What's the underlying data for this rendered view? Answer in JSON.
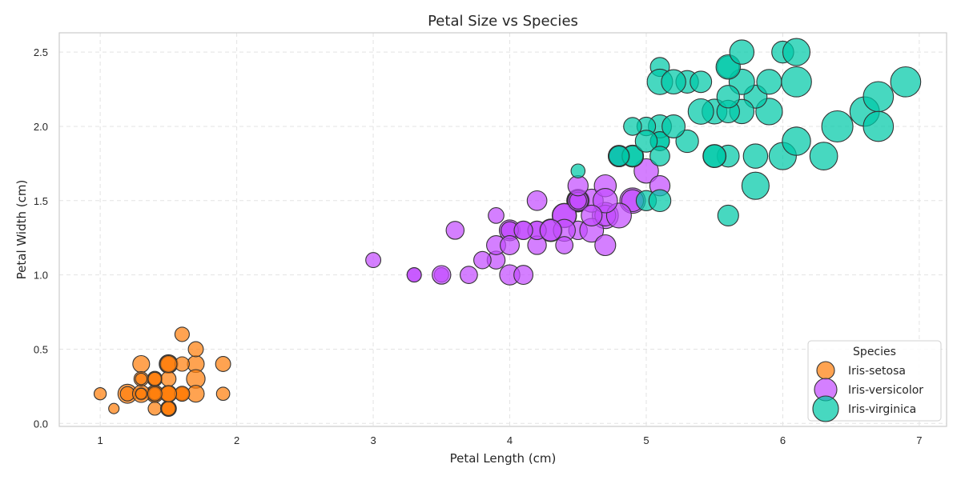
{
  "chart_data": {
    "type": "scatter",
    "title": "Petal Size vs Species",
    "xlabel": "Petal Length (cm)",
    "ylabel": "Petal Width (cm)",
    "xlim": [
      0.7,
      7.2
    ],
    "ylim": [
      -0.02,
      2.63
    ],
    "xticks": [
      1,
      2,
      3,
      4,
      5,
      6,
      7
    ],
    "xtick_labels": [
      "1",
      "2",
      "3",
      "4",
      "5",
      "6",
      "7"
    ],
    "yticks": [
      0.0,
      0.5,
      1.0,
      1.5,
      2.0,
      2.5
    ],
    "ytick_labels": [
      "0.0",
      "0.5",
      "1.0",
      "1.5",
      "2.0",
      "2.5"
    ],
    "grid": true,
    "legend": {
      "title": "Species",
      "placement": "bottom-right"
    },
    "marker_size_encodes": "sepal length",
    "series": [
      {
        "name": "Iris-setosa",
        "color": "#ff7f0e",
        "points": [
          [
            1.4,
            0.2,
            5.1
          ],
          [
            1.4,
            0.2,
            4.9
          ],
          [
            1.3,
            0.2,
            4.7
          ],
          [
            1.5,
            0.2,
            4.6
          ],
          [
            1.4,
            0.2,
            5.0
          ],
          [
            1.7,
            0.4,
            5.4
          ],
          [
            1.4,
            0.3,
            4.6
          ],
          [
            1.5,
            0.2,
            5.0
          ],
          [
            1.4,
            0.2,
            4.4
          ],
          [
            1.5,
            0.1,
            4.9
          ],
          [
            1.5,
            0.2,
            5.4
          ],
          [
            1.6,
            0.2,
            4.8
          ],
          [
            1.4,
            0.1,
            4.8
          ],
          [
            1.1,
            0.1,
            4.3
          ],
          [
            1.2,
            0.2,
            5.8
          ],
          [
            1.5,
            0.4,
            5.7
          ],
          [
            1.3,
            0.4,
            5.4
          ],
          [
            1.4,
            0.3,
            5.1
          ],
          [
            1.7,
            0.3,
            5.7
          ],
          [
            1.5,
            0.3,
            5.1
          ],
          [
            1.7,
            0.2,
            5.4
          ],
          [
            1.5,
            0.4,
            5.1
          ],
          [
            1.0,
            0.2,
            4.6
          ],
          [
            1.7,
            0.5,
            5.1
          ],
          [
            1.9,
            0.2,
            4.8
          ],
          [
            1.6,
            0.2,
            5.0
          ],
          [
            1.6,
            0.4,
            5.0
          ],
          [
            1.5,
            0.2,
            5.2
          ],
          [
            1.4,
            0.2,
            5.2
          ],
          [
            1.6,
            0.2,
            4.7
          ],
          [
            1.6,
            0.2,
            4.8
          ],
          [
            1.5,
            0.4,
            5.4
          ],
          [
            1.5,
            0.1,
            5.2
          ],
          [
            1.4,
            0.2,
            5.5
          ],
          [
            1.5,
            0.1,
            4.9
          ],
          [
            1.2,
            0.2,
            5.0
          ],
          [
            1.3,
            0.2,
            5.5
          ],
          [
            1.5,
            0.1,
            4.9
          ],
          [
            1.3,
            0.2,
            4.4
          ],
          [
            1.5,
            0.2,
            5.1
          ],
          [
            1.3,
            0.3,
            5.0
          ],
          [
            1.3,
            0.3,
            4.5
          ],
          [
            1.3,
            0.2,
            4.4
          ],
          [
            1.6,
            0.6,
            5.0
          ],
          [
            1.9,
            0.4,
            5.1
          ],
          [
            1.4,
            0.3,
            4.8
          ],
          [
            1.6,
            0.2,
            5.1
          ],
          [
            1.4,
            0.2,
            4.6
          ],
          [
            1.5,
            0.2,
            5.3
          ],
          [
            1.4,
            0.2,
            5.0
          ]
        ]
      },
      {
        "name": "Iris-versicolor",
        "color": "#c44dff",
        "points": [
          [
            4.7,
            1.4,
            7.0
          ],
          [
            4.5,
            1.5,
            6.4
          ],
          [
            4.9,
            1.5,
            6.9
          ],
          [
            4.0,
            1.3,
            5.5
          ],
          [
            4.6,
            1.5,
            6.5
          ],
          [
            4.5,
            1.3,
            5.7
          ],
          [
            4.7,
            1.6,
            6.3
          ],
          [
            3.3,
            1.0,
            4.9
          ],
          [
            4.6,
            1.3,
            6.6
          ],
          [
            3.9,
            1.4,
            5.2
          ],
          [
            3.5,
            1.0,
            5.0
          ],
          [
            4.2,
            1.5,
            5.9
          ],
          [
            4.0,
            1.0,
            6.0
          ],
          [
            4.7,
            1.4,
            6.1
          ],
          [
            3.6,
            1.3,
            5.6
          ],
          [
            4.4,
            1.4,
            6.7
          ],
          [
            4.5,
            1.5,
            5.6
          ],
          [
            4.1,
            1.0,
            5.8
          ],
          [
            4.5,
            1.5,
            6.2
          ],
          [
            3.9,
            1.1,
            5.6
          ],
          [
            4.8,
            1.8,
            5.9
          ],
          [
            4.0,
            1.3,
            6.1
          ],
          [
            4.9,
            1.5,
            6.3
          ],
          [
            4.7,
            1.2,
            6.1
          ],
          [
            4.3,
            1.3,
            6.4
          ],
          [
            4.4,
            1.4,
            6.6
          ],
          [
            4.8,
            1.4,
            6.8
          ],
          [
            5.0,
            1.7,
            6.7
          ],
          [
            4.5,
            1.5,
            6.0
          ],
          [
            3.5,
            1.0,
            5.7
          ],
          [
            3.8,
            1.1,
            5.5
          ],
          [
            3.7,
            1.0,
            5.5
          ],
          [
            3.9,
            1.2,
            5.8
          ],
          [
            5.1,
            1.6,
            6.0
          ],
          [
            4.5,
            1.5,
            5.4
          ],
          [
            4.5,
            1.6,
            6.0
          ],
          [
            4.7,
            1.5,
            6.7
          ],
          [
            4.4,
            1.3,
            6.3
          ],
          [
            4.1,
            1.3,
            5.6
          ],
          [
            4.0,
            1.3,
            5.5
          ],
          [
            4.4,
            1.2,
            5.5
          ],
          [
            4.6,
            1.4,
            6.1
          ],
          [
            4.0,
            1.2,
            5.8
          ],
          [
            3.3,
            1.0,
            5.0
          ],
          [
            4.2,
            1.3,
            5.6
          ],
          [
            4.2,
            1.2,
            5.7
          ],
          [
            4.2,
            1.3,
            5.7
          ],
          [
            4.3,
            1.3,
            6.2
          ],
          [
            3.0,
            1.1,
            5.1
          ],
          [
            4.1,
            1.3,
            5.7
          ]
        ]
      },
      {
        "name": "Iris-virginica",
        "color": "#00c9a7",
        "points": [
          [
            6.0,
            2.5,
            6.3
          ],
          [
            5.1,
            1.9,
            5.8
          ],
          [
            5.9,
            2.1,
            7.1
          ],
          [
            5.6,
            1.8,
            6.3
          ],
          [
            5.8,
            2.2,
            6.5
          ],
          [
            6.6,
            2.1,
            7.6
          ],
          [
            4.5,
            1.7,
            4.9
          ],
          [
            6.3,
            1.8,
            7.3
          ],
          [
            5.8,
            1.8,
            6.7
          ],
          [
            6.1,
            2.5,
            7.2
          ],
          [
            5.1,
            2.0,
            6.5
          ],
          [
            5.3,
            1.9,
            6.4
          ],
          [
            5.5,
            2.1,
            6.8
          ],
          [
            5.0,
            2.0,
            5.7
          ],
          [
            5.1,
            2.4,
            5.8
          ],
          [
            5.3,
            2.3,
            6.4
          ],
          [
            5.5,
            1.8,
            6.5
          ],
          [
            6.7,
            2.2,
            7.7
          ],
          [
            6.9,
            2.3,
            7.7
          ],
          [
            5.0,
            1.5,
            6.0
          ],
          [
            5.7,
            2.3,
            6.9
          ],
          [
            4.9,
            2.0,
            5.6
          ],
          [
            6.7,
            2.0,
            7.7
          ],
          [
            4.9,
            1.8,
            6.3
          ],
          [
            5.7,
            2.1,
            6.7
          ],
          [
            6.0,
            1.8,
            7.2
          ],
          [
            4.8,
            1.8,
            6.2
          ],
          [
            4.9,
            1.8,
            6.1
          ],
          [
            5.6,
            2.1,
            6.4
          ],
          [
            5.8,
            1.6,
            7.2
          ],
          [
            6.1,
            1.9,
            7.4
          ],
          [
            6.4,
            2.0,
            7.9
          ],
          [
            5.6,
            2.2,
            6.4
          ],
          [
            5.1,
            1.5,
            6.3
          ],
          [
            5.6,
            1.4,
            6.1
          ],
          [
            6.1,
            2.3,
            7.7
          ],
          [
            5.6,
            2.4,
            6.3
          ],
          [
            5.5,
            1.8,
            6.4
          ],
          [
            4.8,
            1.8,
            6.0
          ],
          [
            5.4,
            2.1,
            6.9
          ],
          [
            5.6,
            2.4,
            6.7
          ],
          [
            5.1,
            2.3,
            6.9
          ],
          [
            5.1,
            1.9,
            5.8
          ],
          [
            5.9,
            2.3,
            6.8
          ],
          [
            5.7,
            2.5,
            6.7
          ],
          [
            5.2,
            2.3,
            6.7
          ],
          [
            5.0,
            1.9,
            6.3
          ],
          [
            5.2,
            2.0,
            6.5
          ],
          [
            5.4,
            2.3,
            6.2
          ],
          [
            5.1,
            1.8,
            5.9
          ]
        ]
      }
    ]
  }
}
